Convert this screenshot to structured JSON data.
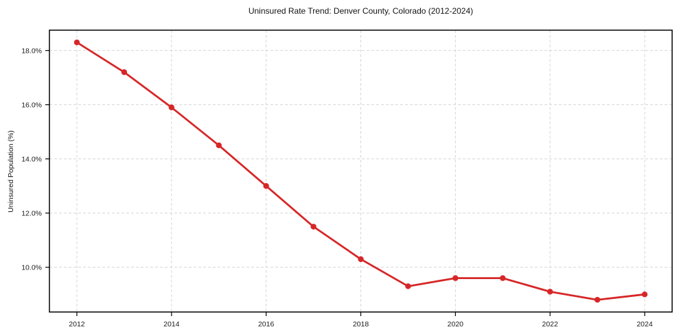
{
  "chart_data": {
    "type": "line",
    "title": "Uninsured Rate Trend: Denver County, Colorado (2012-2024)",
    "xlabel": "",
    "ylabel": "Uninsured Population (%)",
    "x": [
      2012,
      2013,
      2014,
      2015,
      2016,
      2017,
      2018,
      2019,
      2020,
      2021,
      2022,
      2023,
      2024
    ],
    "values": [
      18.3,
      17.2,
      15.9,
      14.5,
      13.0,
      11.5,
      10.3,
      9.3,
      9.6,
      9.6,
      9.1,
      8.8,
      9.0
    ],
    "xticks": [
      2012,
      2014,
      2016,
      2018,
      2020,
      2022,
      2024
    ],
    "xtick_labels": [
      "2012",
      "2014",
      "2016",
      "2018",
      "2020",
      "2022",
      "2024"
    ],
    "yticks": [
      10,
      12,
      14,
      16,
      18
    ],
    "ytick_labels": [
      "10.0%",
      "12.0%",
      "14.0%",
      "16.0%",
      "18.0%"
    ],
    "ytick_decimals": 1,
    "ytick_suffix": "%",
    "xlim": [
      2011.42,
      2024.58
    ],
    "ylim": [
      8.35,
      18.75
    ],
    "grid": true,
    "grid_style": "dashed",
    "legend": false,
    "marker": "circle",
    "style": {
      "line_color": "#d62728",
      "marker_color": "#d62728",
      "grid_color": "#d6d6d6",
      "axis_color": "#000000",
      "text_color": "#1a1a1a",
      "background": "#ffffff"
    }
  }
}
